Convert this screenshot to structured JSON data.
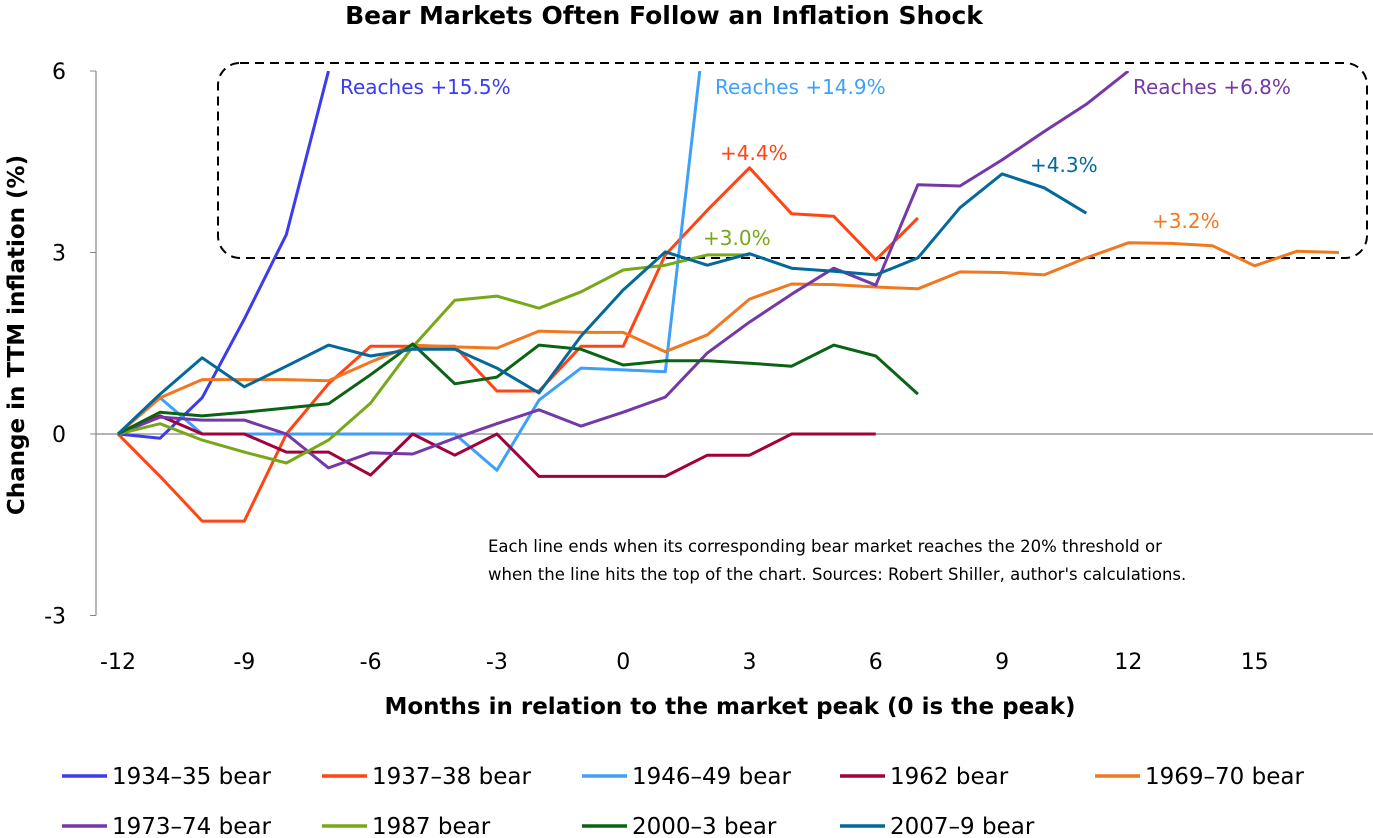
{
  "chart_data": {
    "type": "line",
    "title": "Bear Markets Often Follow an Inflation Shock",
    "xlabel": "Months in relation to the market peak (0 is the peak)",
    "ylabel": "Change in TTM inflation (%)",
    "xlim": [
      -12,
      18
    ],
    "ylim": [
      -3,
      6
    ],
    "xticks": [
      -12,
      -9,
      -6,
      -3,
      0,
      3,
      6,
      9,
      12,
      15
    ],
    "yticks": [
      -3,
      0,
      3,
      6
    ],
    "grid": false,
    "legend_position": "bottom",
    "series": [
      {
        "name": "1934–35 bear",
        "color": "#3b3bef",
        "x": [
          -12,
          -11,
          -10,
          -9,
          -8,
          -7
        ],
        "values": [
          0,
          -0.07,
          0.6,
          1.9,
          3.3,
          6.0
        ]
      },
      {
        "name": "1937–38 bear",
        "color": "#ff4513",
        "x": [
          -12,
          -11,
          -10,
          -9,
          -8,
          -7,
          -6,
          -5,
          -4,
          -3,
          -2,
          -1,
          0,
          1,
          2,
          3,
          4,
          5,
          6,
          7
        ],
        "values": [
          0,
          -0.7,
          -1.44,
          -1.44,
          0,
          0.83,
          1.45,
          1.45,
          1.45,
          0.71,
          0.71,
          1.45,
          1.45,
          2.96,
          3.7,
          4.4,
          3.64,
          3.6,
          2.88,
          3.57
        ]
      },
      {
        "name": "1946–49 bear",
        "color": "#3fa0fa",
        "x": [
          -12,
          -11,
          -10,
          -9,
          -8,
          -7,
          -6,
          -5,
          -4,
          -3,
          -2,
          -1,
          0,
          1,
          2
        ],
        "values": [
          0,
          0.6,
          0,
          0,
          0,
          0,
          0,
          0,
          0,
          -0.6,
          0.56,
          1.09,
          1.06,
          1.03,
          7.1
        ]
      },
      {
        "name": "1962 bear",
        "color": "#a3003c",
        "x": [
          -12,
          -11,
          -10,
          -9,
          -8,
          -7,
          -6,
          -5,
          -4,
          -3,
          -2,
          -1,
          0,
          1,
          2,
          3,
          4,
          5,
          6
        ],
        "values": [
          0,
          0.3,
          0,
          0,
          -0.3,
          -0.3,
          -0.68,
          0,
          -0.35,
          0,
          -0.7,
          -0.7,
          -0.7,
          -0.7,
          -0.35,
          -0.35,
          0,
          0,
          0
        ]
      },
      {
        "name": "1969–70 bear",
        "color": "#f0781e",
        "x": [
          -12,
          -11,
          -10,
          -9,
          -8,
          -7,
          -6,
          -5,
          -4,
          -3,
          -2,
          -1,
          0,
          1,
          2,
          3,
          4,
          5,
          6,
          7,
          8,
          9,
          10,
          11,
          12,
          13,
          14,
          15,
          16,
          17
        ],
        "values": [
          0,
          0.6,
          0.9,
          0.9,
          0.9,
          0.88,
          1.19,
          1.47,
          1.44,
          1.42,
          1.7,
          1.68,
          1.68,
          1.36,
          1.64,
          2.23,
          2.48,
          2.47,
          2.43,
          2.4,
          2.68,
          2.67,
          2.63,
          2.91,
          3.16,
          3.15,
          3.11,
          2.78,
          3.02,
          3.0
        ]
      },
      {
        "name": "1973–74 bear",
        "color": "#7438a8",
        "x": [
          -12,
          -11,
          -10,
          -9,
          -8,
          -7,
          -6,
          -5,
          -4,
          -3,
          -2,
          -1,
          0,
          1,
          2,
          3,
          4,
          5,
          6,
          7,
          8,
          9,
          10,
          11,
          12
        ],
        "values": [
          0,
          0.28,
          0.23,
          0.23,
          0,
          -0.56,
          -0.31,
          -0.33,
          -0.07,
          0.17,
          0.4,
          0.13,
          0.36,
          0.61,
          1.34,
          1.85,
          2.31,
          2.74,
          2.46,
          4.12,
          4.1,
          4.53,
          5.0,
          5.45,
          6.0
        ]
      },
      {
        "name": "1987 bear",
        "color": "#77a818",
        "x": [
          -12,
          -11,
          -10,
          -9,
          -8,
          -7,
          -6,
          -5,
          -4,
          -3,
          -2,
          -1,
          0,
          1,
          2,
          3
        ],
        "values": [
          0,
          0.17,
          -0.1,
          -0.3,
          -0.48,
          -0.1,
          0.51,
          1.44,
          2.21,
          2.28,
          2.08,
          2.35,
          2.71,
          2.79,
          2.96,
          2.96
        ]
      },
      {
        "name": "2000–3 bear",
        "color": "#0b6414",
        "x": [
          -12,
          -11,
          -10,
          -9,
          -8,
          -7,
          -6,
          -5,
          -4,
          -3,
          -2,
          -1,
          0,
          1,
          2,
          3,
          4,
          5,
          6,
          7
        ],
        "values": [
          0,
          0.36,
          0.3,
          0.36,
          0.43,
          0.5,
          0.98,
          1.49,
          0.83,
          0.94,
          1.47,
          1.4,
          1.14,
          1.21,
          1.21,
          1.17,
          1.12,
          1.47,
          1.29,
          0.66
        ]
      },
      {
        "name": "2007–9 bear",
        "color": "#04699a",
        "x": [
          -12,
          -11,
          -10,
          -9,
          -8,
          -7,
          -6,
          -5,
          -4,
          -3,
          -2,
          -1,
          0,
          1,
          2,
          3,
          4,
          5,
          6,
          7,
          8,
          9,
          10,
          11
        ],
        "values": [
          0,
          0.66,
          1.26,
          0.78,
          1.12,
          1.47,
          1.29,
          1.4,
          1.4,
          1.09,
          0.68,
          1.62,
          2.38,
          3.01,
          2.79,
          2.98,
          2.74,
          2.69,
          2.63,
          2.91,
          3.74,
          4.3,
          4.07,
          3.65
        ]
      }
    ],
    "annotations": [
      {
        "text": "Reaches +15.5%",
        "color": "#3b3bef"
      },
      {
        "text": "Reaches +14.9%",
        "color": "#3fa0fa"
      },
      {
        "text": "Reaches +6.8%",
        "color": "#7438a8"
      },
      {
        "text": "+4.4%",
        "color": "#ff4513"
      },
      {
        "text": "+4.3%",
        "color": "#04699a"
      },
      {
        "text": "+3.2%",
        "color": "#f0781e"
      },
      {
        "text": "+3.0%",
        "color": "#77a818"
      }
    ],
    "note": [
      "Each line ends when its corresponding bear market reaches the 20% threshold or",
      "when the line hits the top of the chart. Sources: Robert Shiller, author's calculations."
    ]
  }
}
